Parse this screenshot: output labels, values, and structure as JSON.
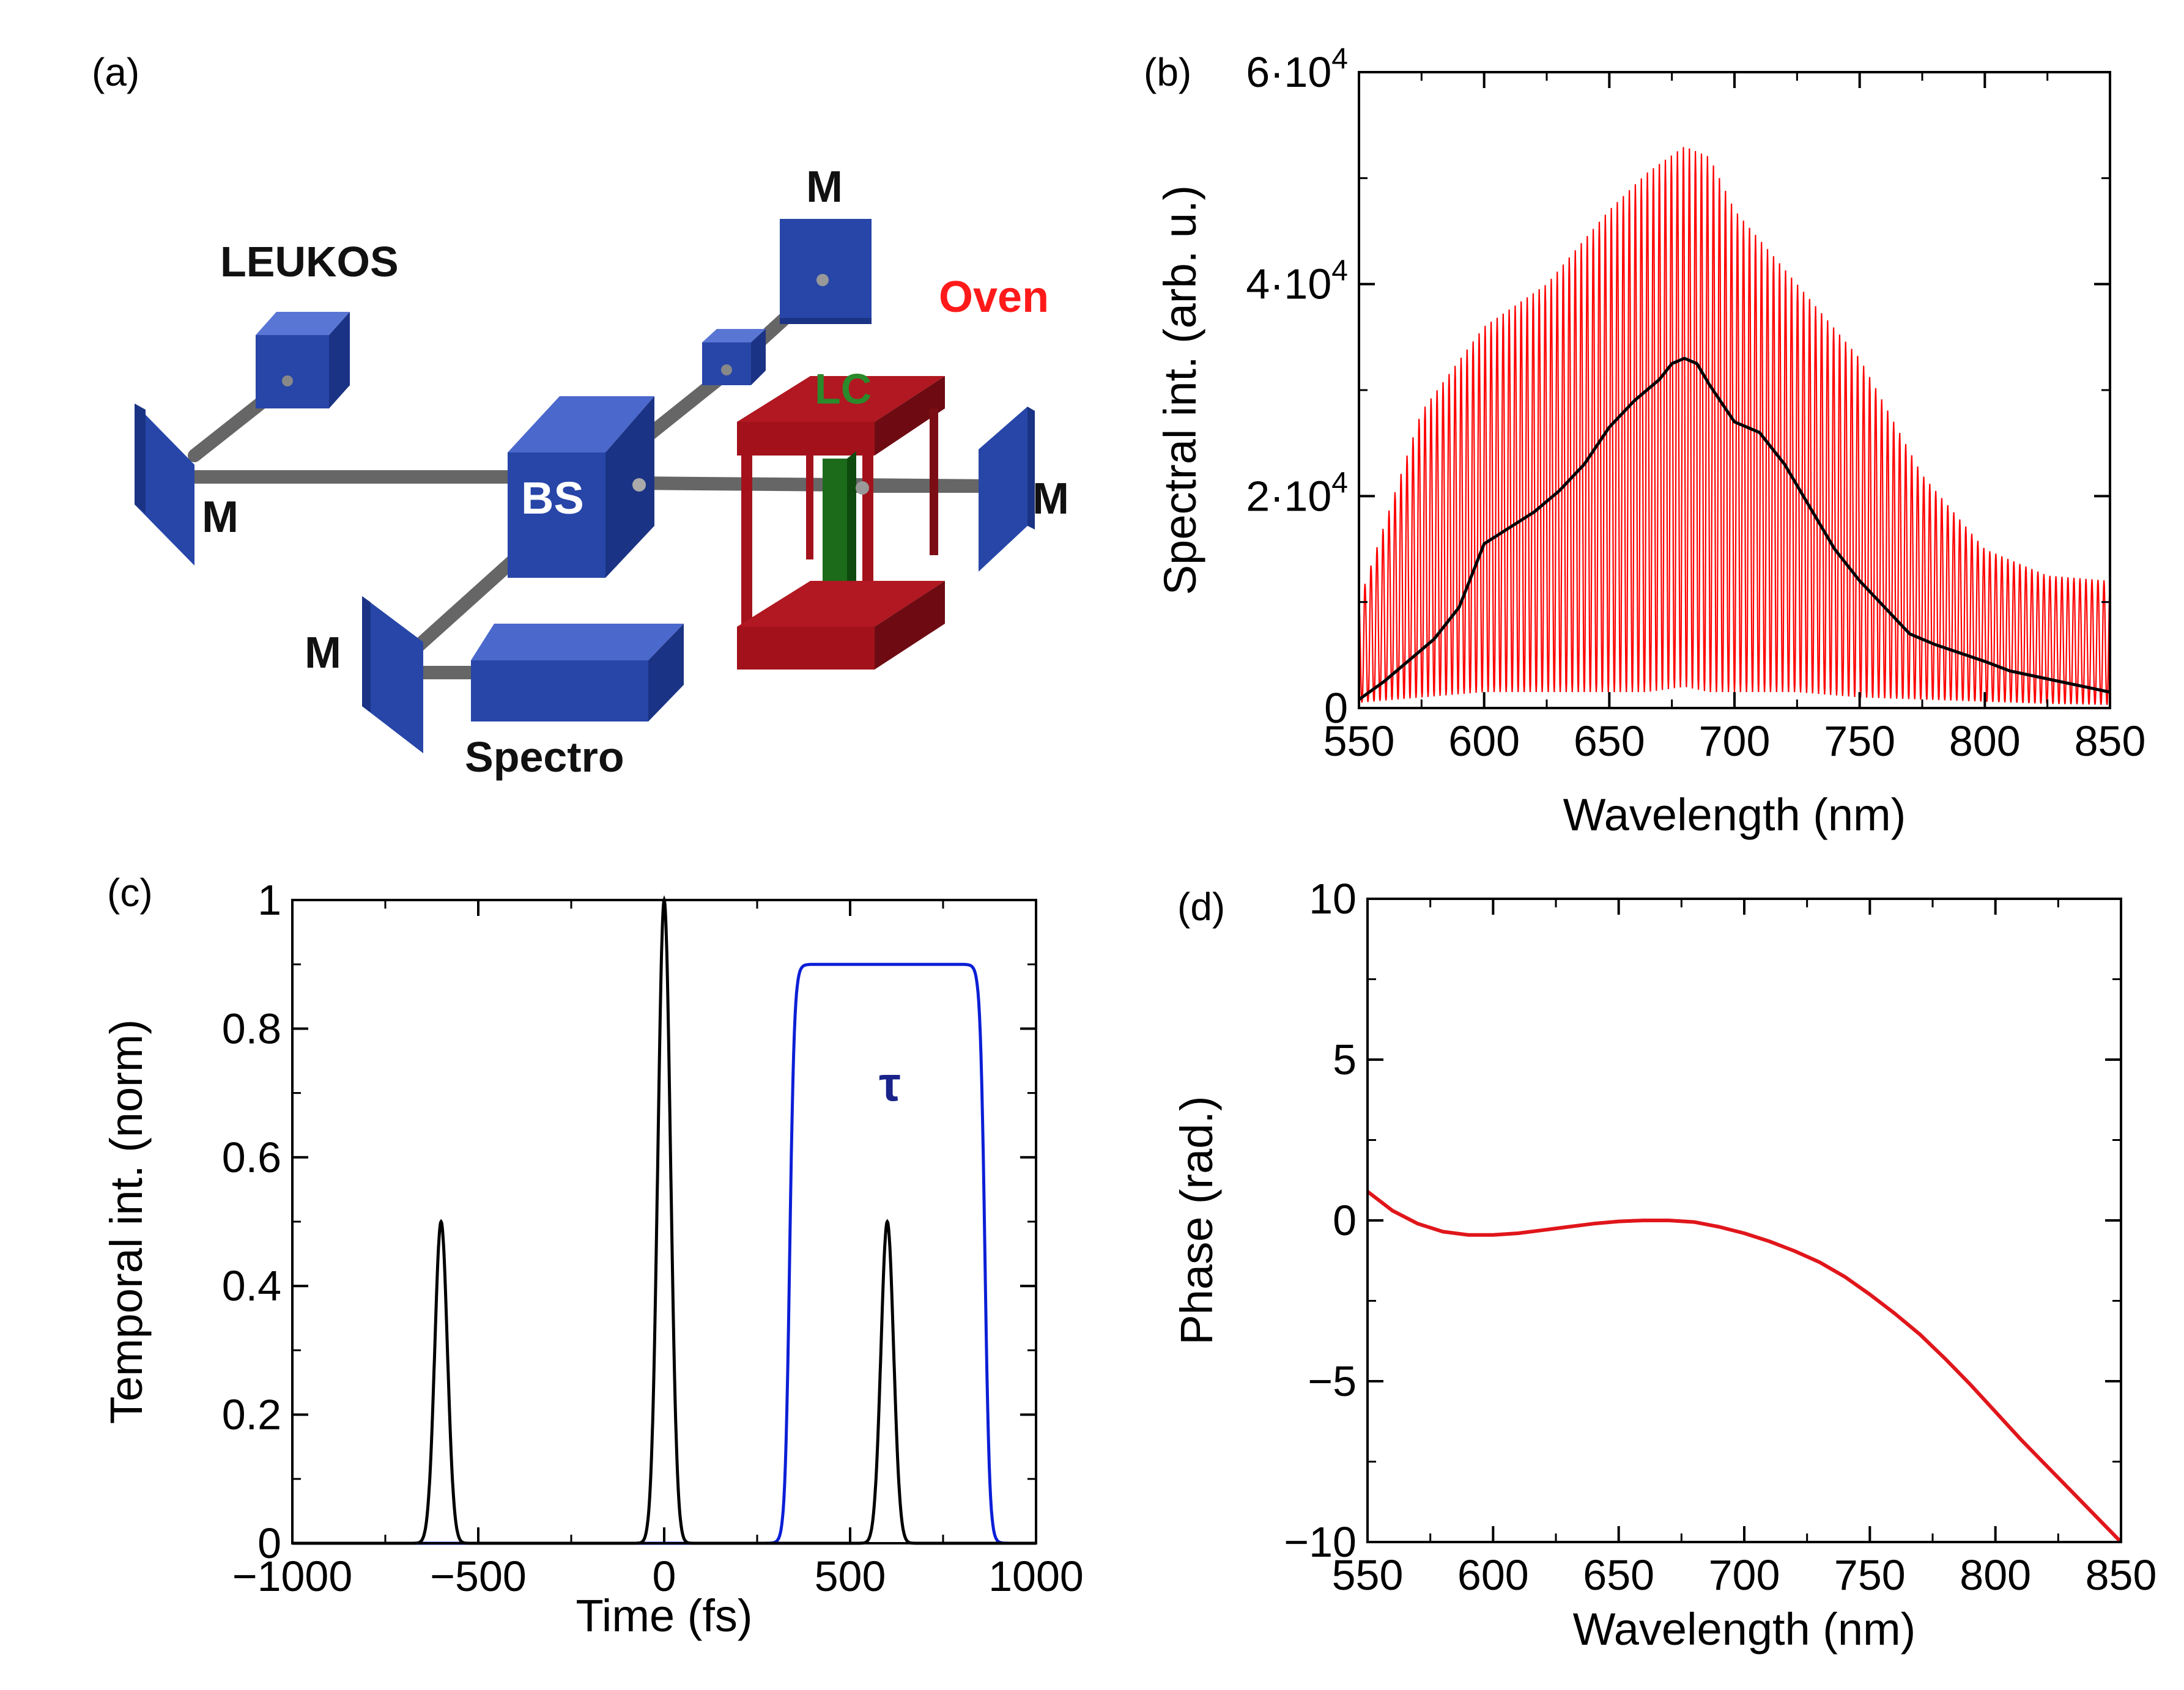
{
  "panel_labels": {
    "a": "(a)",
    "b": "(b)",
    "c": "(c)",
    "d": "(d)"
  },
  "setup": {
    "labels": {
      "leukos": "LEUKOS",
      "oven": "Oven",
      "lc": "LC",
      "bs": "BS",
      "spectro": "Spectro",
      "m_top": "M",
      "m_left": "M",
      "m_right": "M",
      "m_bottom": "M"
    },
    "colors": {
      "optic": "#2746a8",
      "oven": "#a3121b",
      "lc": "#1b6b1b",
      "beam": "#666666",
      "oven_label": "#ff1a1a",
      "lc_label": "#2b8a2b"
    }
  },
  "chart_data": [
    {
      "id": "b",
      "type": "line",
      "xlabel": "Wavelength (nm)",
      "ylabel": "Spectral int. (arb. u.)",
      "xlim": [
        550,
        850
      ],
      "ylim": [
        0,
        60000
      ],
      "xticks": [
        550,
        600,
        650,
        700,
        750,
        800,
        850
      ],
      "xtick_labels": [
        "550",
        "600",
        "650",
        "700",
        "750",
        "800",
        "850"
      ],
      "yticks": [
        0,
        20000,
        40000,
        60000
      ],
      "ytick_labels": [
        {
          "mant": "0",
          "exp": ""
        },
        {
          "mant": "2·10",
          "exp": "4"
        },
        {
          "mant": "4·10",
          "exp": "4"
        },
        {
          "mant": "6·10",
          "exp": "4"
        }
      ],
      "series": [
        {
          "name": "interferogram",
          "color": "#ff0000",
          "style": "fringes",
          "fringe_period_nm": 2.4,
          "x": [
            550,
            575,
            600,
            625,
            650,
            665,
            680,
            690,
            700,
            725,
            750,
            775,
            800,
            825,
            850
          ],
          "envelope_max": [
            10000,
            28000,
            36000,
            40000,
            47000,
            50500,
            53000,
            52000,
            47000,
            40000,
            33000,
            22000,
            15000,
            12500,
            12000
          ],
          "envelope_min": [
            500,
            1000,
            1500,
            1500,
            1500,
            1500,
            2000,
            1500,
            1500,
            1500,
            1000,
            800,
            600,
            400,
            300
          ]
        },
        {
          "name": "reference spectrum",
          "color": "#000000",
          "style": "line",
          "x": [
            550,
            560,
            570,
            580,
            590,
            600,
            610,
            620,
            630,
            640,
            650,
            660,
            670,
            675,
            680,
            685,
            690,
            700,
            710,
            720,
            730,
            740,
            750,
            760,
            770,
            780,
            790,
            800,
            810,
            820,
            830,
            840,
            850
          ],
          "y": [
            800,
            2500,
            4500,
            6500,
            9500,
            15500,
            17000,
            18500,
            20500,
            23000,
            26500,
            29000,
            31000,
            32500,
            33000,
            32500,
            30500,
            27000,
            26000,
            23000,
            19000,
            15000,
            12000,
            9500,
            7000,
            6000,
            5200,
            4400,
            3500,
            3000,
            2500,
            2000,
            1500
          ]
        }
      ]
    },
    {
      "id": "c",
      "type": "line",
      "xlabel": "Time (fs)",
      "ylabel": "Temporal int. (norm)",
      "xlim": [
        -1000,
        1000
      ],
      "ylim": [
        0,
        1
      ],
      "xticks": [
        -1000,
        -500,
        0,
        500,
        1000
      ],
      "xtick_labels": [
        "−1000",
        "−500",
        "0",
        "500",
        "1000"
      ],
      "yticks": [
        0,
        0.2,
        0.4,
        0.6,
        0.8,
        1
      ],
      "ytick_labels": [
        "0",
        "0.2",
        "0.4",
        "0.6",
        "0.8",
        "1"
      ],
      "annotation": "τ",
      "series": [
        {
          "name": "pulses",
          "color": "#000000",
          "peaks": [
            {
              "center": -600,
              "height": 0.5,
              "fwhm": 40
            },
            {
              "center": 0,
              "height": 1.0,
              "fwhm": 40
            },
            {
              "center": 600,
              "height": 0.5,
              "fwhm": 40
            }
          ]
        },
        {
          "name": "gate",
          "color": "#0b1fd6",
          "plateau": 0.9,
          "start": 300,
          "end": 900,
          "edge_width": 25
        }
      ]
    },
    {
      "id": "d",
      "type": "line",
      "xlabel": "Wavelength (nm)",
      "ylabel": "Phase (rad.)",
      "xlim": [
        550,
        850
      ],
      "ylim": [
        -10,
        10
      ],
      "xticks": [
        550,
        600,
        650,
        700,
        750,
        800,
        850
      ],
      "xtick_labels": [
        "550",
        "600",
        "650",
        "700",
        "750",
        "800",
        "850"
      ],
      "yticks": [
        -10,
        -5,
        0,
        5,
        10
      ],
      "ytick_labels": [
        "−10",
        "−5",
        "0",
        "5",
        "10"
      ],
      "series": [
        {
          "name": "phase",
          "color": "#e0161b",
          "x": [
            550,
            560,
            570,
            580,
            590,
            600,
            610,
            620,
            630,
            640,
            650,
            660,
            670,
            680,
            690,
            700,
            710,
            720,
            730,
            740,
            750,
            760,
            770,
            780,
            790,
            800,
            810,
            820,
            830,
            840,
            850
          ],
          "y": [
            0.9,
            0.3,
            -0.1,
            -0.35,
            -0.45,
            -0.45,
            -0.4,
            -0.3,
            -0.2,
            -0.1,
            -0.03,
            0.0,
            0.0,
            -0.05,
            -0.2,
            -0.4,
            -0.65,
            -0.95,
            -1.3,
            -1.75,
            -2.3,
            -2.9,
            -3.55,
            -4.3,
            -5.1,
            -5.95,
            -6.8,
            -7.6,
            -8.4,
            -9.2,
            -10.0
          ]
        }
      ]
    }
  ]
}
